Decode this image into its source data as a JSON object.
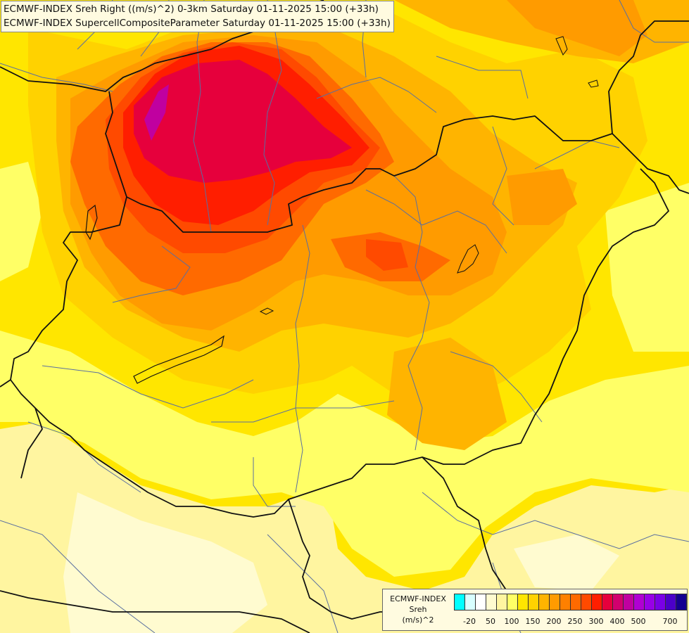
{
  "title_lines": [
    "ECMWF-INDEX Sreh Right ((m/s)^2) 0-3km Saturday 01-11-2025 15:00 (+33h)",
    "ECMWF-INDEX SupercellCompositeParameter Saturday 01-11-2025 15:00 (+33h)"
  ],
  "legend": {
    "title_lines": [
      "ECMWF-INDEX",
      "Sreh",
      "(m/s)^2"
    ],
    "colors": [
      "#00ffff",
      "#d8ffff",
      "#ffffff",
      "#fffbd0",
      "#fff5a0",
      "#ffff66",
      "#ffe600",
      "#ffd200",
      "#ffb400",
      "#ff9b00",
      "#ff8000",
      "#ff6a00",
      "#ff4a00",
      "#ff1e00",
      "#e6003c",
      "#d2006e",
      "#c000a0",
      "#b000d2",
      "#9800e6",
      "#7a00e6",
      "#4b00c8",
      "#140090"
    ],
    "ticks": [
      "-20",
      "50",
      "100",
      "150",
      "200",
      "250",
      "300",
      "400",
      "500",
      "700"
    ]
  },
  "map": {
    "background_color": "#ffe600",
    "field_colors": {
      "pale": "#fffbd0",
      "light_yellow": "#fff5a0",
      "yellow": "#ffff66",
      "gold": "#ffe600",
      "orange_yellow": "#ffd200",
      "light_orange": "#ffb400",
      "orange": "#ff9b00",
      "dark_orange": "#ff6a00",
      "red_orange": "#ff4a00",
      "red": "#ff1e00",
      "crimson": "#e6003c",
      "magenta": "#c000a0"
    },
    "border_color": "#111111",
    "region_line_color": "#5a6fa0"
  }
}
